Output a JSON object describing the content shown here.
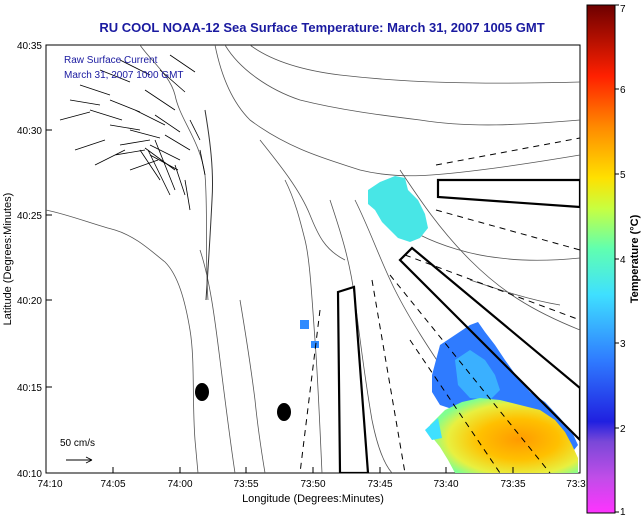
{
  "title": "RU COOL  NOAA-12  Sea Surface Temperature:  March 31, 2007 1005 GMT",
  "inset_text": {
    "line1": "Raw Surface Current",
    "line2": "March 31, 2007 1000 GMT"
  },
  "scale_label": "50 cm/s",
  "x_axis": {
    "label": "Longitude (Degrees:Minutes)",
    "ticks": [
      "74:10",
      "74:05",
      "74:00",
      "73:55",
      "73:50",
      "73:45",
      "73:40",
      "73:35",
      "73:3"
    ]
  },
  "y_axis": {
    "label": "Latitude (Degrees:Minutes)",
    "ticks": [
      "40:35",
      "40:30",
      "40:25",
      "40:20",
      "40:15",
      "40:10"
    ]
  },
  "colorbar": {
    "label": "Temperature (°C)",
    "ticks": [
      "7",
      "6",
      "5",
      "4",
      "3",
      "2",
      "1"
    ],
    "min": 1,
    "max": 7,
    "colors": [
      "#ff33ff",
      "#8a4ad6",
      "#2020e0",
      "#2f8bff",
      "#3fe0ff",
      "#6dffa0",
      "#f0ff30",
      "#ffb000",
      "#ff3a00",
      "#a00000",
      "#6e0000"
    ]
  },
  "sst_patches": [
    {
      "region": "ring-off-sandy-hook",
      "temperature": 3.6
    },
    {
      "region": "offshore-mid",
      "temperature": 2.5
    },
    {
      "region": "offshore-south-warm",
      "temperature": 5.0
    }
  ]
}
